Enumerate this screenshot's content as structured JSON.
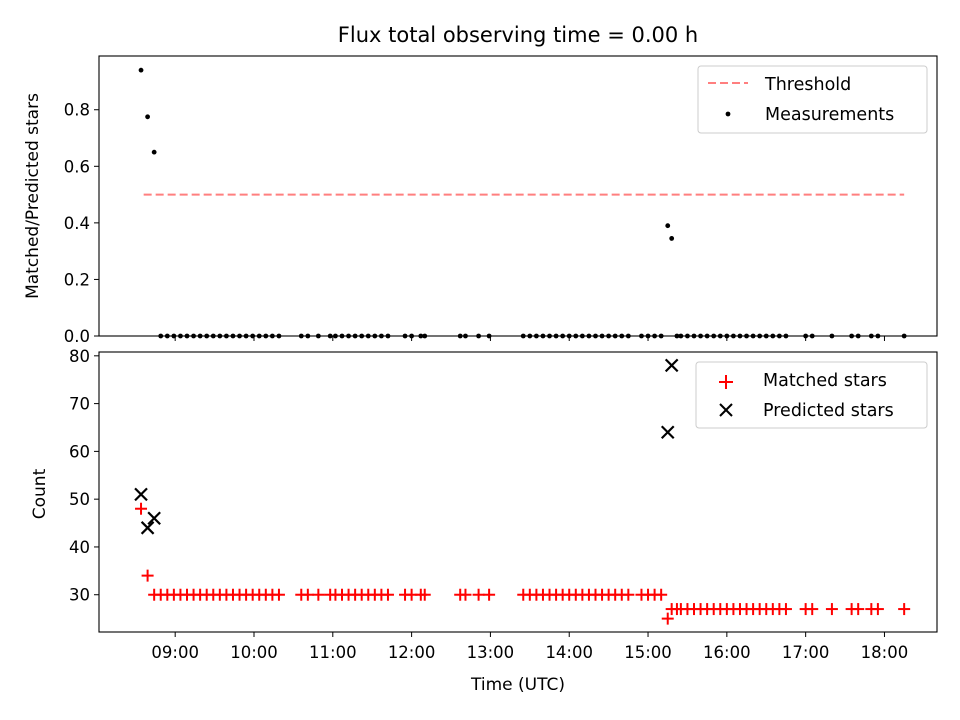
{
  "chart_data": [
    {
      "type": "scatter",
      "title": "Flux total observing time = 0.00 h",
      "xlabel": "",
      "ylabel": "Matched/Predicted stars",
      "ylim": [
        0,
        0.99
      ],
      "yticks": [
        "0.0",
        "0.2",
        "0.4",
        "0.6",
        "0.8"
      ],
      "legend": {
        "position": "top-right",
        "entries": [
          "Threshold",
          "Measurements"
        ]
      },
      "threshold": {
        "name": "Threshold",
        "y": 0.5,
        "x_start": "08:36",
        "x_end": "18:15",
        "color": "#ff7f7f"
      },
      "series": [
        {
          "name": "Measurements",
          "color": "#000000",
          "x": [
            "08:34",
            "08:39",
            "08:44",
            "08:49",
            "08:54",
            "08:59",
            "09:04",
            "09:09",
            "09:14",
            "09:19",
            "09:24",
            "09:29",
            "09:34",
            "09:39",
            "09:44",
            "09:49",
            "09:54",
            "09:59",
            "10:04",
            "10:09",
            "10:14",
            "10:19",
            "10:36",
            "10:41",
            "10:49",
            "10:58",
            "11:02",
            "11:07",
            "11:12",
            "11:17",
            "11:22",
            "11:27",
            "11:32",
            "11:37",
            "11:42",
            "11:55",
            "12:00",
            "12:07",
            "12:10",
            "12:37",
            "12:41",
            "12:51",
            "12:59",
            "13:25",
            "13:30",
            "13:35",
            "13:40",
            "13:45",
            "13:50",
            "13:55",
            "14:00",
            "14:05",
            "14:10",
            "14:15",
            "14:20",
            "14:25",
            "14:30",
            "14:35",
            "14:40",
            "14:45",
            "14:55",
            "15:00",
            "15:05",
            "15:10",
            "15:15",
            "15:18",
            "15:22",
            "15:25",
            "15:30",
            "15:35",
            "15:40",
            "15:45",
            "15:50",
            "15:55",
            "16:00",
            "16:05",
            "16:10",
            "16:15",
            "16:20",
            "16:25",
            "16:30",
            "16:35",
            "16:40",
            "16:45",
            "17:00",
            "17:05",
            "17:20",
            "17:35",
            "17:40",
            "17:50",
            "17:55",
            "18:15"
          ],
          "y": [
            0.94,
            0.775,
            0.65,
            0,
            0,
            0,
            0,
            0,
            0,
            0,
            0,
            0,
            0,
            0,
            0,
            0,
            0,
            0,
            0,
            0,
            0,
            0,
            0,
            0,
            0,
            0,
            0,
            0,
            0,
            0,
            0,
            0,
            0,
            0,
            0,
            0,
            0,
            0,
            0,
            0,
            0,
            0,
            0,
            0,
            0,
            0,
            0,
            0,
            0,
            0,
            0,
            0,
            0,
            0,
            0,
            0,
            0,
            0,
            0,
            0,
            0,
            0,
            0,
            0,
            0.39,
            0.345,
            0,
            0,
            0,
            0,
            0,
            0,
            0,
            0,
            0,
            0,
            0,
            0,
            0,
            0,
            0,
            0,
            0,
            0,
            0,
            0,
            0,
            0,
            0,
            0,
            0,
            0
          ]
        }
      ]
    },
    {
      "type": "scatter",
      "title": "",
      "xlabel": "Time (UTC)",
      "ylabel": "Count",
      "ylim": [
        22.2,
        80.8
      ],
      "yticks": [
        "30",
        "40",
        "50",
        "60",
        "70",
        "80"
      ],
      "xticks": [
        "09:00",
        "10:00",
        "11:00",
        "12:00",
        "13:00",
        "14:00",
        "15:00",
        "16:00",
        "17:00",
        "18:00"
      ],
      "xlim": [
        "08:02",
        "18:40"
      ],
      "legend": {
        "position": "top-right",
        "entries": [
          "Matched stars",
          "Predicted stars"
        ]
      },
      "series": [
        {
          "name": "Matched stars",
          "color": "#ff0000",
          "marker": "+",
          "x": [
            "08:34",
            "08:39",
            "08:44",
            "08:49",
            "08:54",
            "08:59",
            "09:04",
            "09:09",
            "09:14",
            "09:19",
            "09:24",
            "09:29",
            "09:34",
            "09:39",
            "09:44",
            "09:49",
            "09:54",
            "09:59",
            "10:04",
            "10:09",
            "10:14",
            "10:19",
            "10:36",
            "10:41",
            "10:49",
            "10:58",
            "11:02",
            "11:07",
            "11:12",
            "11:17",
            "11:22",
            "11:27",
            "11:32",
            "11:37",
            "11:42",
            "11:55",
            "12:00",
            "12:07",
            "12:10",
            "12:37",
            "12:41",
            "12:51",
            "12:59",
            "13:25",
            "13:30",
            "13:35",
            "13:40",
            "13:45",
            "13:50",
            "13:55",
            "14:00",
            "14:05",
            "14:10",
            "14:15",
            "14:20",
            "14:25",
            "14:30",
            "14:35",
            "14:40",
            "14:45",
            "14:55",
            "15:00",
            "15:05",
            "15:10",
            "15:15",
            "15:18",
            "15:22",
            "15:25",
            "15:30",
            "15:35",
            "15:40",
            "15:45",
            "15:50",
            "15:55",
            "16:00",
            "16:05",
            "16:10",
            "16:15",
            "16:20",
            "16:25",
            "16:30",
            "16:35",
            "16:40",
            "16:45",
            "17:00",
            "17:05",
            "17:20",
            "17:35",
            "17:40",
            "17:50",
            "17:55",
            "18:15"
          ],
          "y": [
            48,
            34,
            30,
            30,
            30,
            30,
            30,
            30,
            30,
            30,
            30,
            30,
            30,
            30,
            30,
            30,
            30,
            30,
            30,
            30,
            30,
            30,
            30,
            30,
            30,
            30,
            30,
            30,
            30,
            30,
            30,
            30,
            30,
            30,
            30,
            30,
            30,
            30,
            30,
            30,
            30,
            30,
            30,
            30,
            30,
            30,
            30,
            30,
            30,
            30,
            30,
            30,
            30,
            30,
            30,
            30,
            30,
            30,
            30,
            30,
            30,
            30,
            30,
            30,
            25,
            27,
            27,
            27,
            27,
            27,
            27,
            27,
            27,
            27,
            27,
            27,
            27,
            27,
            27,
            27,
            27,
            27,
            27,
            27,
            27,
            27,
            27,
            27,
            27,
            27,
            27,
            27
          ]
        },
        {
          "name": "Predicted stars",
          "color": "#000000",
          "marker": "x",
          "x": [
            "08:34",
            "08:39",
            "08:44",
            "15:15",
            "15:18"
          ],
          "y": [
            51,
            44,
            46,
            64,
            78
          ]
        }
      ]
    }
  ]
}
